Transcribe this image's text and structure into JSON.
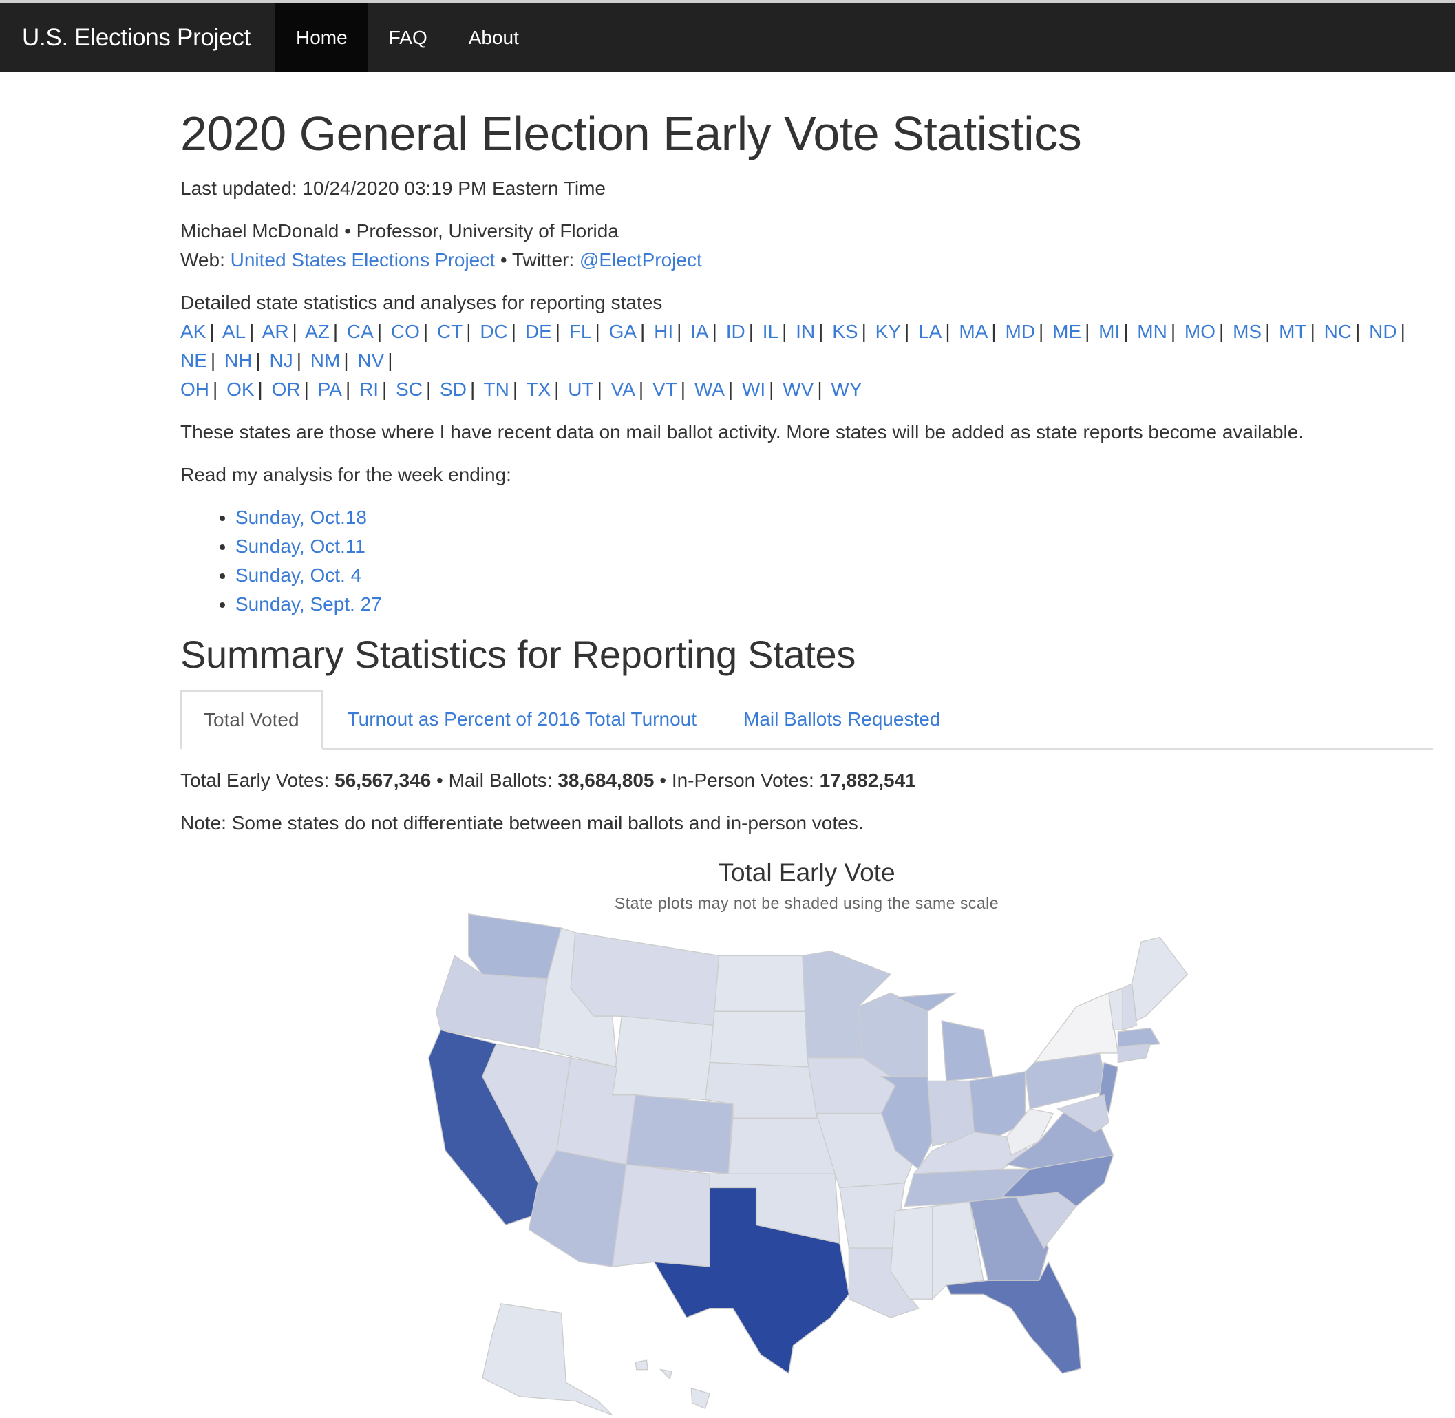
{
  "nav": {
    "brand": "U.S. Elections Project",
    "items": [
      {
        "label": "Home",
        "active": true
      },
      {
        "label": "FAQ"
      },
      {
        "label": "About"
      }
    ]
  },
  "page": {
    "title": "2020 General Election Early Vote Statistics",
    "last_updated": "Last updated: 10/24/2020 03:19 PM Eastern Time",
    "author": "Michael McDonald • Professor, University of Florida",
    "web_label": "Web: ",
    "web_link": "United States Elections Project",
    "twitter_label": " • Twitter: ",
    "twitter_link": "@ElectProject",
    "states_intro": "Detailed state statistics and analyses for reporting states",
    "states": [
      "AK",
      "AL",
      "AR",
      "AZ",
      "CA",
      "CO",
      "CT",
      "DC",
      "DE",
      "FL",
      "GA",
      "HI",
      "IA",
      "ID",
      "IL",
      "IN",
      "KS",
      "KY",
      "LA",
      "MA",
      "MD",
      "ME",
      "MI",
      "MN",
      "MO",
      "MS",
      "MT",
      "NC",
      "ND",
      "NE",
      "NH",
      "NJ",
      "NM",
      "NV",
      "OH",
      "OK",
      "OR",
      "PA",
      "RI",
      "SC",
      "SD",
      "TN",
      "TX",
      "UT",
      "VA",
      "VT",
      "WA",
      "WI",
      "WV",
      "WY"
    ],
    "states_note": "These states are those where I have recent data on mail ballot activity. More states will be added as state reports become available.",
    "analysis_intro": "Read my analysis for the week ending:",
    "analysis_links": [
      "Sunday, Oct.18",
      "Sunday, Oct.11",
      "Sunday, Oct. 4",
      "Sunday, Sept. 27"
    ],
    "summary_title": "Summary Statistics for Reporting States",
    "tabs": [
      "Total Voted",
      "Turnout as Percent of 2016 Total Turnout",
      "Mail Ballots Requested"
    ],
    "totals": {
      "early_label": "Total Early Votes: ",
      "early": "56,567,346",
      "mail_label": " • Mail Ballots: ",
      "mail": "38,684,805",
      "inperson_label": " • In-Person Votes: ",
      "inperson": "17,882,541"
    },
    "note": "Note: Some states do not differentiate between mail ballots and in-person votes."
  },
  "chart_data": {
    "type": "choropleth",
    "title": "Total Early Vote",
    "subtitle": "State plots may not be shaded using the same scale",
    "color_low": "#f7f7f7",
    "color_high": "#1f3f98",
    "shade_levels": {
      "WA": 0.35,
      "OR": 0.2,
      "CA": 0.85,
      "ID": 0.1,
      "NV": 0.15,
      "MT": 0.15,
      "WY": 0.1,
      "UT": 0.15,
      "AZ": 0.3,
      "CO": 0.3,
      "NM": 0.15,
      "ND": 0.1,
      "SD": 0.1,
      "NE": 0.12,
      "KS": 0.12,
      "OK": 0.12,
      "TX": 0.95,
      "MN": 0.25,
      "IA": 0.15,
      "MO": 0.12,
      "AR": 0.12,
      "LA": 0.15,
      "WI": 0.25,
      "IL": 0.35,
      "MI": 0.35,
      "IN": 0.2,
      "OH": 0.35,
      "KY": 0.15,
      "TN": 0.3,
      "MS": 0.1,
      "AL": 0.1,
      "GA": 0.45,
      "FL": 0.7,
      "SC": 0.2,
      "NC": 0.55,
      "VA": 0.4,
      "WV": 0.05,
      "PA": 0.3,
      "NY": 0.02,
      "NJ": 0.5,
      "MD": 0.2,
      "VT": 0.1,
      "NH": 0.15,
      "ME": 0.1,
      "MA": 0.35,
      "CT": 0.2,
      "AK": 0.1,
      "HI": 0.1
    }
  }
}
